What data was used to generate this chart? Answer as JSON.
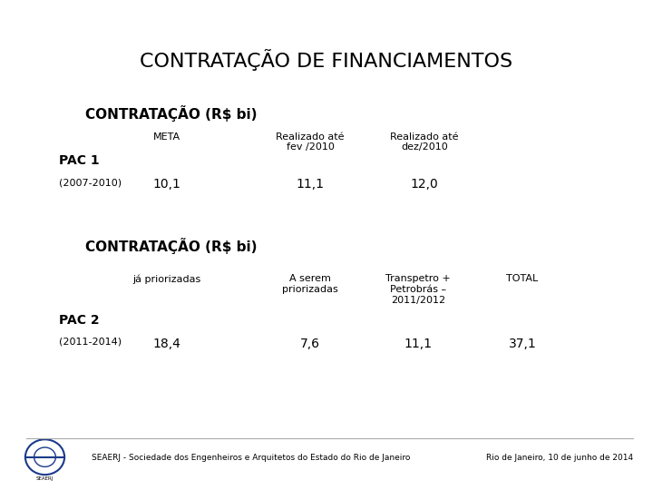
{
  "title": "CONTRATAÇÃO DE FINANCIAMENTOS",
  "bg_color": "#ffffff",
  "title_fontsize": 16,
  "section1_header": "CONTRATAÇÃO (R$ bi)",
  "section1_col1_header": "META",
  "section1_col2_header": "Realizado até\nfev /2010",
  "section1_col3_header": "Realizado até\ndez/2010",
  "section1_row_label1": "PAC 1",
  "section1_row_label2": "(2007-2010)",
  "section1_val1": "10,1",
  "section1_val2": "11,1",
  "section1_val3": "12,0",
  "section2_header": "CONTRATAÇÃO (R$ bi)",
  "section2_col1_header": "já priorizadas",
  "section2_col2_header": "A serem\npriorizadas",
  "section2_col3_header": "Transpetro +\nPetrobrás –\n2011/2012",
  "section2_col4_header": "TOTAL",
  "section2_row_label1": "PAC 2",
  "section2_row_label2": "(2011-2014)",
  "section2_val1": "18,4",
  "section2_val2": "7,6",
  "section2_val3": "11,1",
  "section2_val4": "37,1",
  "footer_left": "SEAERJ - Sociedade dos Engenheiros e Arquitetos do Estado do Rio de Janeiro",
  "footer_right": "Rio de Janeiro, 10 de junho de 2014",
  "text_color": "#000000",
  "footer_line_color": "#aaaaaa",
  "section_header_fontsize": 11,
  "col_header_fontsize": 8,
  "row_label_bold_fontsize": 10,
  "row_label_fontsize": 8,
  "value_fontsize": 10,
  "footer_fontsize": 6.5,
  "logo_color": "#1a3a8a"
}
